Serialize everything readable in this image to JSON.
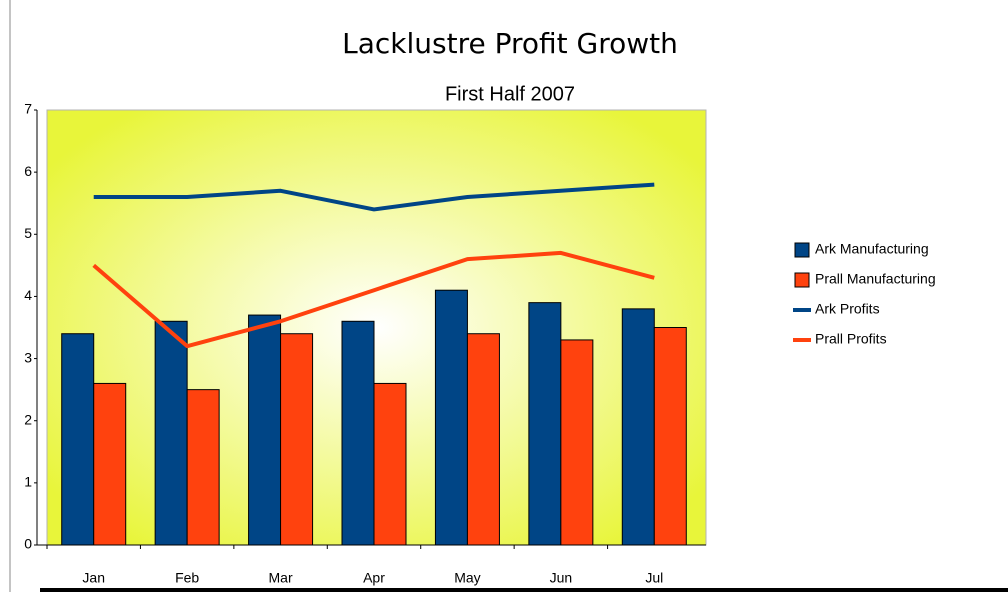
{
  "chart_data": {
    "type": "bar_line",
    "title": "Lacklustre Profit Growth",
    "subtitle": "First Half 2007",
    "categories": [
      "Jan",
      "Feb",
      "Mar",
      "Apr",
      "May",
      "Jun",
      "Jul"
    ],
    "series": [
      {
        "name": "Ark Manufacturing",
        "type": "bar",
        "color": "#004586",
        "values": [
          3.4,
          3.6,
          3.7,
          3.6,
          4.1,
          3.9,
          3.8
        ]
      },
      {
        "name": "Prall Manufacturing",
        "type": "bar",
        "color": "#ff420e",
        "values": [
          2.6,
          2.5,
          3.4,
          2.6,
          3.4,
          3.3,
          3.5
        ]
      },
      {
        "name": "Ark Profits",
        "type": "line",
        "color": "#004586",
        "values": [
          5.6,
          5.6,
          5.7,
          5.4,
          5.6,
          5.7,
          5.8
        ]
      },
      {
        "name": "Prall Profits",
        "type": "line",
        "color": "#ff420e",
        "values": [
          4.5,
          3.2,
          3.6,
          4.1,
          4.6,
          4.7,
          4.3
        ]
      }
    ],
    "ylim": [
      0,
      7
    ],
    "yticks": [
      0,
      1,
      2,
      3,
      4,
      5,
      6,
      7
    ],
    "grid": false,
    "legend": "right"
  }
}
